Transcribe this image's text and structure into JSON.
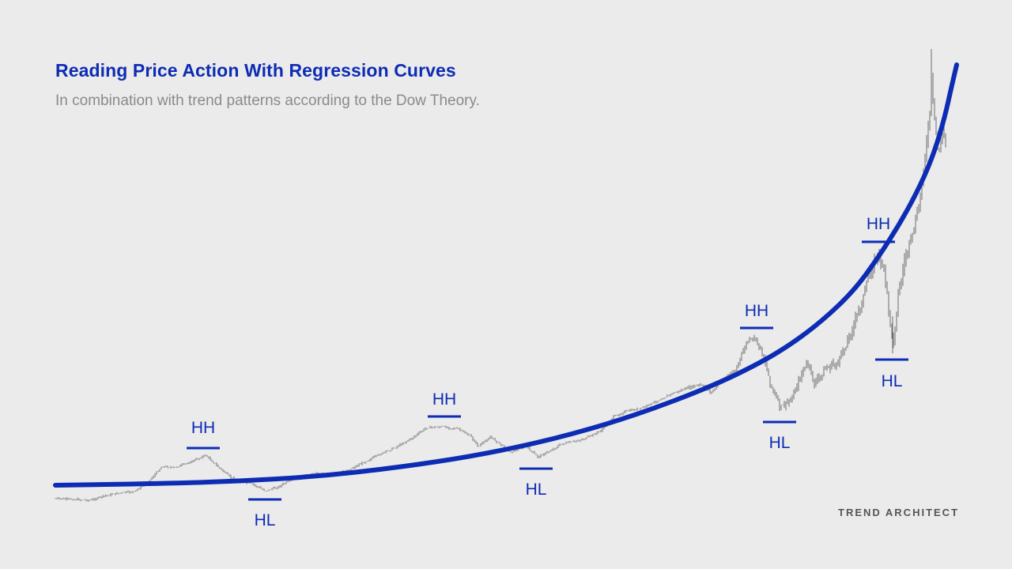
{
  "title": "Reading Price Action With Regression Curves",
  "subtitle": "In combination with trend patterns according to the Dow Theory.",
  "logo": "TREND ARCHITECT",
  "colors": {
    "background": "#ebebeb",
    "accent": "#0d2cb4",
    "candles": "#6e6e6e"
  },
  "chart_data": {
    "type": "line",
    "title": "Reading Price Action With Regression Curves",
    "subtitle": "In combination with trend patterns according to the Dow Theory.",
    "xlabel": "",
    "ylabel": "",
    "grid": false,
    "axes_visible": false,
    "series": [
      {
        "kind": "candlestick-price"
      },
      {
        "kind": "regression-curve"
      }
    ],
    "annotations": [
      {
        "label": "HH"
      },
      {
        "label": "HL"
      },
      {
        "label": "HH"
      },
      {
        "label": "HL"
      },
      {
        "label": "HH"
      },
      {
        "label": "HL"
      },
      {
        "label": "HH"
      },
      {
        "label": "HL"
      }
    ]
  }
}
